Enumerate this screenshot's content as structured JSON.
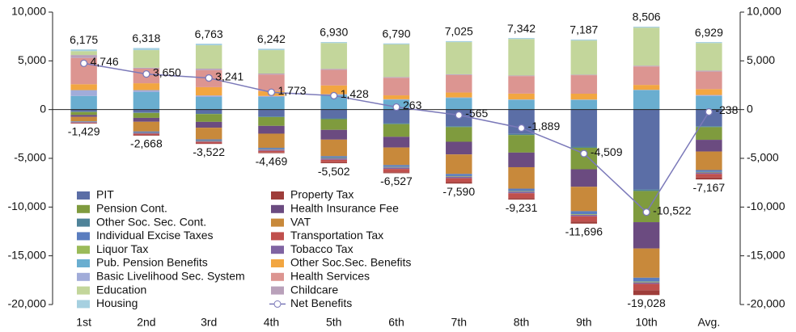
{
  "chart_data": {
    "type": "bar",
    "stacked": true,
    "categories": [
      "1st",
      "2nd",
      "3rd",
      "4th",
      "5th",
      "6th",
      "7th",
      "8th",
      "9th",
      "10th",
      "Avg."
    ],
    "ylim": [
      -20000,
      10000
    ],
    "yticks": [
      {
        "value": 10000,
        "label": "10,000"
      },
      {
        "value": 5000,
        "label": "5,000"
      },
      0,
      {
        "value": -5000,
        "label": "-5,000"
      },
      {
        "value": -10000,
        "label": "-10,000"
      },
      {
        "value": -15000,
        "label": "-15,000"
      },
      {
        "value": -20000,
        "label": "-20,000"
      }
    ],
    "y2lim": [
      -20000,
      10000
    ],
    "y2ticks": [
      {
        "value": 10000,
        "label": "10,000"
      },
      {
        "value": 5000,
        "label": "5,000"
      },
      0,
      {
        "value": -5000,
        "label": "-5,000"
      },
      {
        "value": -10000,
        "label": "-10,000"
      },
      {
        "value": -15000,
        "label": "-15,000"
      },
      {
        "value": -20000,
        "label": "-20,000"
      }
    ],
    "legend": "lower left",
    "series": [
      {
        "name": "PIT",
        "color": "#5b6ea6",
        "values": [
          -200,
          -300,
          -400,
          -700,
          -900,
          -1400,
          -1700,
          -2500,
          -3800,
          -8200,
          -1700
        ]
      },
      {
        "name": "Pension Cont.",
        "color": "#7f9b3e",
        "values": [
          -300,
          -500,
          -800,
          -900,
          -1100,
          -1300,
          -1500,
          -1800,
          -2200,
          -3200,
          -1300
        ]
      },
      {
        "name": "Other Soc. Sec. Cont.",
        "color": "#4f8399",
        "values": [
          -50,
          -50,
          -60,
          -70,
          -80,
          -90,
          -100,
          -110,
          -120,
          -150,
          -100
        ]
      },
      {
        "name": "Individual Excise Taxes",
        "color": "#5a7dbf",
        "values": [
          -60,
          -100,
          -120,
          -150,
          -180,
          -200,
          -220,
          -250,
          -300,
          -400,
          -200
        ]
      },
      {
        "name": "Liquor Tax",
        "color": "#9bbb59",
        "values": [
          -20,
          -30,
          -40,
          -40,
          -50,
          -50,
          -60,
          -60,
          -70,
          -80,
          -50
        ]
      },
      {
        "name": "Pub. Pension Benefits",
        "color": "#6aaed0",
        "values": [
          1400,
          1800,
          1300,
          1300,
          1500,
          1000,
          1200,
          1000,
          1000,
          2000,
          1400
        ]
      },
      {
        "name": "Basic Livelihood Sec. System",
        "color": "#a1acd9",
        "values": [
          600,
          200,
          150,
          100,
          80,
          60,
          50,
          40,
          30,
          30,
          100
        ]
      },
      {
        "name": "Education",
        "color": "#c3d69b",
        "values": [
          400,
          1800,
          2400,
          2400,
          2650,
          3350,
          3300,
          3742,
          3500,
          3900,
          2829
        ]
      },
      {
        "name": "Housing",
        "color": "#a6d0e0",
        "values": [
          175,
          218,
          163,
          142,
          100,
          100,
          100,
          100,
          100,
          100,
          100
        ]
      },
      {
        "name": "Property Tax",
        "color": "#9e3d3a",
        "values": [
          -40,
          -70,
          -60,
          -70,
          -100,
          -100,
          -150,
          -150,
          -200,
          -500,
          -200
        ]
      },
      {
        "name": "Health Insurance Fee",
        "color": "#6b4b80",
        "values": [
          -200,
          -400,
          -600,
          -800,
          -1000,
          -1100,
          -1300,
          -1500,
          -1800,
          -2700,
          -1200
        ]
      },
      {
        "name": "VAT",
        "color": "#c8893b",
        "values": [
          -450,
          -1000,
          -1200,
          -1450,
          -1700,
          -1800,
          -2000,
          -2200,
          -2500,
          -3000,
          -1900
        ]
      },
      {
        "name": "Transportation Tax",
        "color": "#c0504d",
        "values": [
          -49,
          -118,
          -142,
          -169,
          -252,
          -337,
          -400,
          -501,
          -556,
          -648,
          -367
        ]
      },
      {
        "name": "Tobacco Tax",
        "color": "#8064a2",
        "values": [
          -60,
          -100,
          -100,
          -120,
          -140,
          -150,
          -160,
          -160,
          -150,
          -150,
          -150
        ]
      },
      {
        "name": "Other Soc.Sec. Benefits",
        "color": "#f2a641",
        "values": [
          600,
          700,
          850,
          500,
          900,
          400,
          500,
          600,
          600,
          500,
          600
        ]
      },
      {
        "name": "Health Services",
        "color": "#dc9591",
        "values": [
          2700,
          1500,
          1750,
          1700,
          1600,
          1800,
          1800,
          1800,
          1900,
          1900,
          1800
        ]
      },
      {
        "name": "Childcare",
        "color": "#b9a1ba",
        "values": [
          300,
          100,
          150,
          100,
          100,
          80,
          75,
          60,
          57,
          76,
          100
        ]
      },
      {
        "name": "Net Benefits",
        "type": "line",
        "color": "#7b79b9",
        "values": [
          4746,
          3650,
          3241,
          1773,
          1428,
          263,
          -565,
          -1889,
          -4509,
          -10522,
          -238
        ],
        "value_labels": [
          "4,746",
          "3,650",
          "3,241",
          "1,773",
          "1,428",
          "263",
          "-565",
          "-1,889",
          "-4,509",
          "-10,522",
          "-238"
        ]
      }
    ],
    "positive_totals": {
      "values": [
        6175,
        6318,
        6763,
        6242,
        6930,
        6790,
        7025,
        7342,
        7187,
        8506,
        6929
      ],
      "value_labels": [
        "6,175",
        "6,318",
        "6,763",
        "6,242",
        "6,930",
        "6,790",
        "7,025",
        "7,342",
        "7,187",
        "8,506",
        "6,929"
      ]
    },
    "negative_totals": {
      "values": [
        -1429,
        -2668,
        -3522,
        -4469,
        -5502,
        -6527,
        -7590,
        -9231,
        -11696,
        -19028,
        -7167
      ],
      "value_labels": [
        "-1,429",
        "-2,668",
        "-3,522",
        "-4,469",
        "-5,502",
        "-6,527",
        "-7,590",
        "-9,231",
        "-11,696",
        "-19,028",
        "-7,167"
      ]
    }
  }
}
